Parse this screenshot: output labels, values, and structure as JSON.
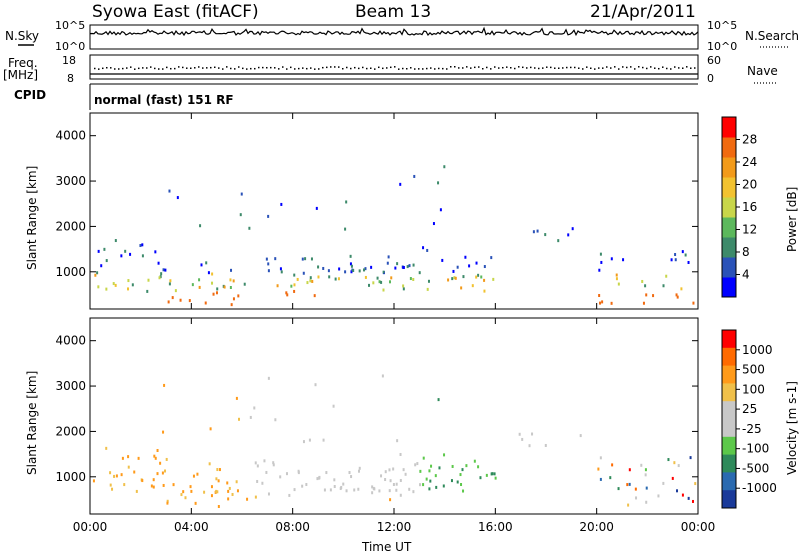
{
  "header": {
    "station": "Syowa East (fitACF)",
    "beam": "Beam 13",
    "date": "21/Apr/2011"
  },
  "summary_panels": {
    "nsky_label": "N.Sky",
    "nsearch_label": "N.Search",
    "noise_ticks_left": [
      "10^5",
      "10^0"
    ],
    "noise_ticks_right": [
      "10^5",
      "10^0"
    ],
    "freq_label_top": "Freq.",
    "freq_label_bottom": "[MHz]",
    "freq_ticks": [
      "18",
      "8"
    ],
    "nave_label": "Nave",
    "nave_ticks": [
      "60",
      "0"
    ],
    "cpid_label": "CPID",
    "cpid_text": "normal (fast) 151 RF"
  },
  "colors": {
    "power_scale": [
      "#0000ff",
      "#2a52b8",
      "#3d8a6a",
      "#5cb85c",
      "#c8d64a",
      "#f2c230",
      "#f29a1a",
      "#f06a10",
      "#ff0000"
    ],
    "velocity_scale": [
      "#ff0000",
      "#ff6a00",
      "#ff9a1a",
      "#f0c04a",
      "#c8c8c8",
      "#c8c8c8",
      "#5cc84a",
      "#2e8a5a",
      "#2a6ab0",
      "#1a3a9a"
    ]
  },
  "chart_data": [
    {
      "type": "heatmap",
      "title": "Power",
      "xlabel": "",
      "ylabel": "Slant Range [km]",
      "x_ticks": [
        "00:00",
        "04:00",
        "08:00",
        "12:00",
        "16:00",
        "20:00",
        "00:00"
      ],
      "xlim": [
        0,
        24
      ],
      "ylim": [
        180,
        4500
      ],
      "y_ticks": [
        "1000",
        "2000",
        "3000",
        "4000"
      ],
      "colorbar_label": "Power [dB]",
      "colorbar_ticks": [
        "4",
        "8",
        "12",
        "16",
        "20",
        "24",
        "28"
      ],
      "colorbar_range": [
        0,
        30
      ]
    },
    {
      "type": "heatmap",
      "title": "Velocity",
      "xlabel": "Time UT",
      "ylabel": "Slant Range [km]",
      "x_ticks": [
        "00:00",
        "04:00",
        "08:00",
        "12:00",
        "16:00",
        "20:00",
        "00:00"
      ],
      "xlim": [
        0,
        24
      ],
      "ylim": [
        180,
        4500
      ],
      "y_ticks": [
        "1000",
        "2000",
        "3000",
        "4000"
      ],
      "colorbar_label": "Velocity [m s-1]",
      "colorbar_ticks": [
        "1000",
        "500",
        "100",
        "25",
        "-25",
        "-100",
        "-500",
        "-1000"
      ],
      "colorbar_range": [
        -1250,
        1250
      ]
    }
  ]
}
